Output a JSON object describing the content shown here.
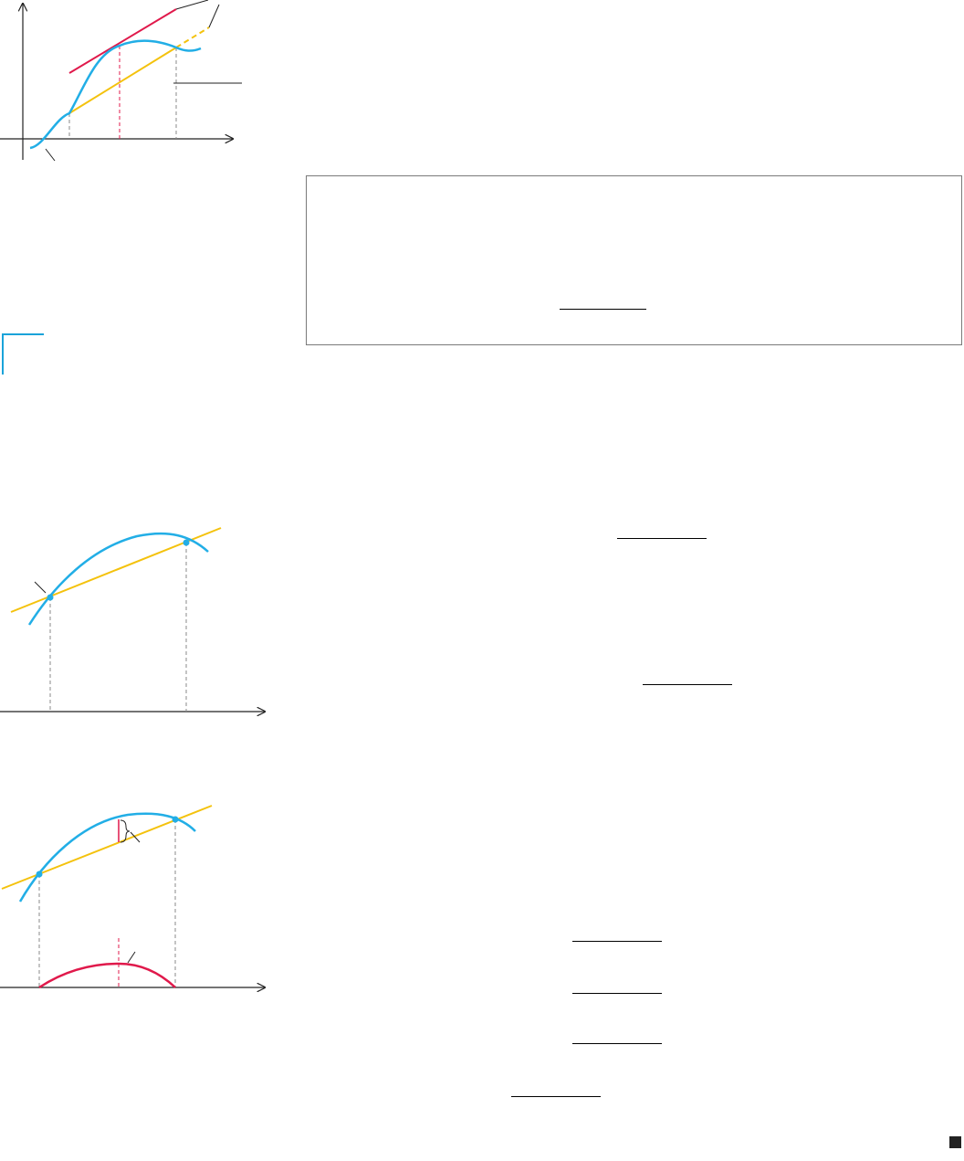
{
  "colors": {
    "curve": "#22aee6",
    "secant": "#f4c20d",
    "tangent": "#e0194b",
    "axis": "#222222",
    "guide": "#888888",
    "box_border": "#7a7a7a"
  },
  "icons": {
    "end_of_proof": "filled-square-icon"
  }
}
